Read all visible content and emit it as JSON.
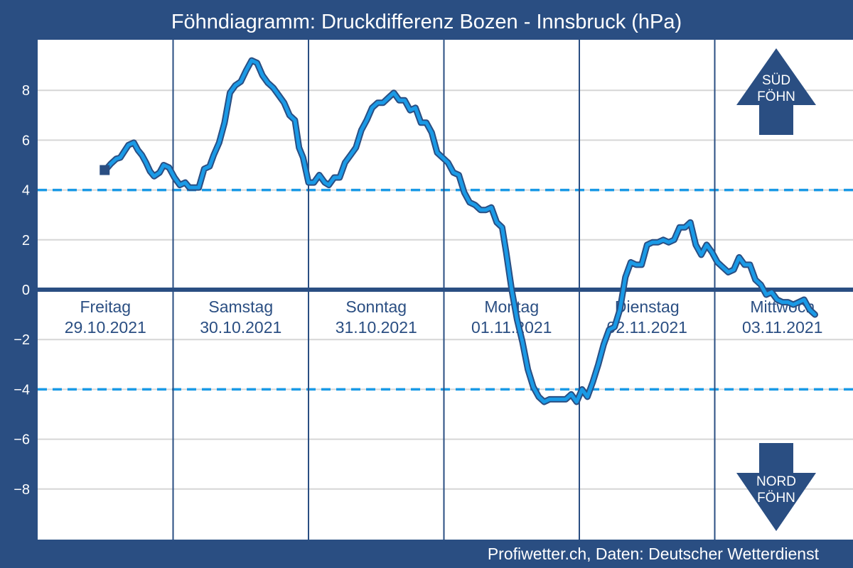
{
  "chart_data": {
    "type": "line",
    "title": "Föhndiagramm: Druckdifferenz Bozen - Innsbruck (hPa)",
    "footer": "Profiwetter.ch, Daten: Deutscher Wetterdienst",
    "ylim": [
      -10,
      10
    ],
    "xlim": [
      0,
      6
    ],
    "y_ticks": [
      {
        "value": 8,
        "label": "8"
      },
      {
        "value": 6,
        "label": "6"
      },
      {
        "value": 4,
        "label": "4"
      },
      {
        "value": 2,
        "label": "2"
      },
      {
        "value": 0,
        "label": "0"
      },
      {
        "value": -2,
        "label": "−2"
      },
      {
        "value": -4,
        "label": "−4"
      },
      {
        "value": -6,
        "label": "−6"
      },
      {
        "value": -8,
        "label": "−8"
      }
    ],
    "grid": true,
    "thresholds": [
      4,
      -4
    ],
    "days": [
      {
        "name": "Freitag",
        "date": "29.10.2021"
      },
      {
        "name": "Samstag",
        "date": "30.10.2021"
      },
      {
        "name": "Sonntag",
        "date": "31.10.2021"
      },
      {
        "name": "Montag",
        "date": "01.11.2021"
      },
      {
        "name": "Dienstag",
        "date": "02.11.2021"
      },
      {
        "name": "Mittwoch",
        "date": "03.11.2021"
      }
    ],
    "indicators": {
      "south": {
        "line1": "SÜD",
        "line2": "FÖHN"
      },
      "north": {
        "line1": "NORD",
        "line2": "FÖHN"
      }
    },
    "colors": {
      "background": "#2a4e82",
      "plot": "#ffffff",
      "series": "#1a9ae6",
      "series_outline": "#2a4e82",
      "threshold": "#1a9ae6",
      "zero_line": "#2a4e82",
      "grid": "#d6d6d6",
      "day_separator": "#2a4e82",
      "day_label": "#2a4e82"
    },
    "series": [
      {
        "values": [
          [
            0.5,
            4.8
          ],
          [
            0.54,
            5.05
          ],
          [
            0.58,
            5.25
          ],
          [
            0.61,
            5.3
          ],
          [
            0.64,
            5.55
          ],
          [
            0.67,
            5.8
          ],
          [
            0.71,
            5.9
          ],
          [
            0.74,
            5.6
          ],
          [
            0.77,
            5.4
          ],
          [
            0.8,
            5.1
          ],
          [
            0.83,
            4.75
          ],
          [
            0.86,
            4.55
          ],
          [
            0.9,
            4.7
          ],
          [
            0.93,
            5.0
          ],
          [
            0.97,
            4.9
          ],
          [
            1.01,
            4.5
          ],
          [
            1.05,
            4.2
          ],
          [
            1.09,
            4.3
          ],
          [
            1.12,
            4.1
          ],
          [
            1.15,
            4.1
          ],
          [
            1.19,
            4.1
          ],
          [
            1.23,
            4.85
          ],
          [
            1.27,
            4.95
          ],
          [
            1.3,
            5.4
          ],
          [
            1.34,
            5.9
          ],
          [
            1.38,
            6.7
          ],
          [
            1.42,
            7.9
          ],
          [
            1.46,
            8.2
          ],
          [
            1.5,
            8.35
          ],
          [
            1.54,
            8.8
          ],
          [
            1.58,
            9.2
          ],
          [
            1.62,
            9.1
          ],
          [
            1.66,
            8.6
          ],
          [
            1.7,
            8.3
          ],
          [
            1.74,
            8.1
          ],
          [
            1.78,
            7.8
          ],
          [
            1.82,
            7.5
          ],
          [
            1.86,
            7.0
          ],
          [
            1.9,
            6.8
          ],
          [
            1.93,
            5.7
          ],
          [
            1.96,
            5.3
          ],
          [
            2.0,
            4.3
          ],
          [
            2.04,
            4.3
          ],
          [
            2.08,
            4.6
          ],
          [
            2.12,
            4.3
          ],
          [
            2.15,
            4.2
          ],
          [
            2.19,
            4.5
          ],
          [
            2.23,
            4.5
          ],
          [
            2.27,
            5.1
          ],
          [
            2.31,
            5.4
          ],
          [
            2.35,
            5.7
          ],
          [
            2.39,
            6.4
          ],
          [
            2.43,
            6.8
          ],
          [
            2.47,
            7.3
          ],
          [
            2.51,
            7.5
          ],
          [
            2.55,
            7.5
          ],
          [
            2.59,
            7.7
          ],
          [
            2.63,
            7.9
          ],
          [
            2.67,
            7.6
          ],
          [
            2.71,
            7.6
          ],
          [
            2.75,
            7.2
          ],
          [
            2.79,
            7.3
          ],
          [
            2.83,
            6.7
          ],
          [
            2.87,
            6.7
          ],
          [
            2.91,
            6.3
          ],
          [
            2.95,
            5.5
          ],
          [
            2.99,
            5.3
          ],
          [
            3.03,
            5.1
          ],
          [
            3.07,
            4.7
          ],
          [
            3.11,
            4.6
          ],
          [
            3.15,
            3.9
          ],
          [
            3.19,
            3.5
          ],
          [
            3.23,
            3.4
          ],
          [
            3.27,
            3.2
          ],
          [
            3.31,
            3.2
          ],
          [
            3.35,
            3.3
          ],
          [
            3.39,
            2.7
          ],
          [
            3.43,
            2.5
          ],
          [
            3.46,
            1.5
          ],
          [
            3.5,
            0.0
          ],
          [
            3.54,
            -1.2
          ],
          [
            3.58,
            -2.1
          ],
          [
            3.62,
            -3.2
          ],
          [
            3.66,
            -3.9
          ],
          [
            3.7,
            -4.3
          ],
          [
            3.74,
            -4.5
          ],
          [
            3.78,
            -4.4
          ],
          [
            3.82,
            -4.4
          ],
          [
            3.86,
            -4.4
          ],
          [
            3.9,
            -4.4
          ],
          [
            3.94,
            -4.2
          ],
          [
            3.98,
            -4.5
          ],
          [
            4.02,
            -4.0
          ],
          [
            4.06,
            -4.3
          ],
          [
            4.1,
            -3.7
          ],
          [
            4.14,
            -3.0
          ],
          [
            4.18,
            -2.2
          ],
          [
            4.22,
            -1.6
          ],
          [
            4.26,
            -1.5
          ],
          [
            4.3,
            -0.8
          ],
          [
            4.34,
            0.5
          ],
          [
            4.38,
            1.1
          ],
          [
            4.42,
            1.0
          ],
          [
            4.46,
            1.0
          ],
          [
            4.5,
            1.8
          ],
          [
            4.54,
            1.9
          ],
          [
            4.58,
            1.9
          ],
          [
            4.62,
            2.0
          ],
          [
            4.66,
            1.9
          ],
          [
            4.7,
            2.0
          ],
          [
            4.74,
            2.5
          ],
          [
            4.78,
            2.5
          ],
          [
            4.82,
            2.7
          ],
          [
            4.86,
            1.8
          ],
          [
            4.9,
            1.4
          ],
          [
            4.94,
            1.8
          ],
          [
            4.98,
            1.5
          ],
          [
            5.02,
            1.1
          ],
          [
            5.06,
            0.9
          ],
          [
            5.1,
            0.7
          ],
          [
            5.14,
            0.8
          ],
          [
            5.18,
            1.3
          ],
          [
            5.22,
            1.0
          ],
          [
            5.26,
            1.0
          ],
          [
            5.3,
            0.4
          ],
          [
            5.34,
            0.2
          ],
          [
            5.38,
            -0.2
          ],
          [
            5.42,
            -0.1
          ],
          [
            5.46,
            -0.4
          ],
          [
            5.5,
            -0.5
          ],
          [
            5.54,
            -0.5
          ],
          [
            5.58,
            -0.6
          ],
          [
            5.62,
            -0.5
          ],
          [
            5.66,
            -0.4
          ],
          [
            5.7,
            -0.8
          ],
          [
            5.74,
            -1.0
          ]
        ]
      }
    ]
  }
}
